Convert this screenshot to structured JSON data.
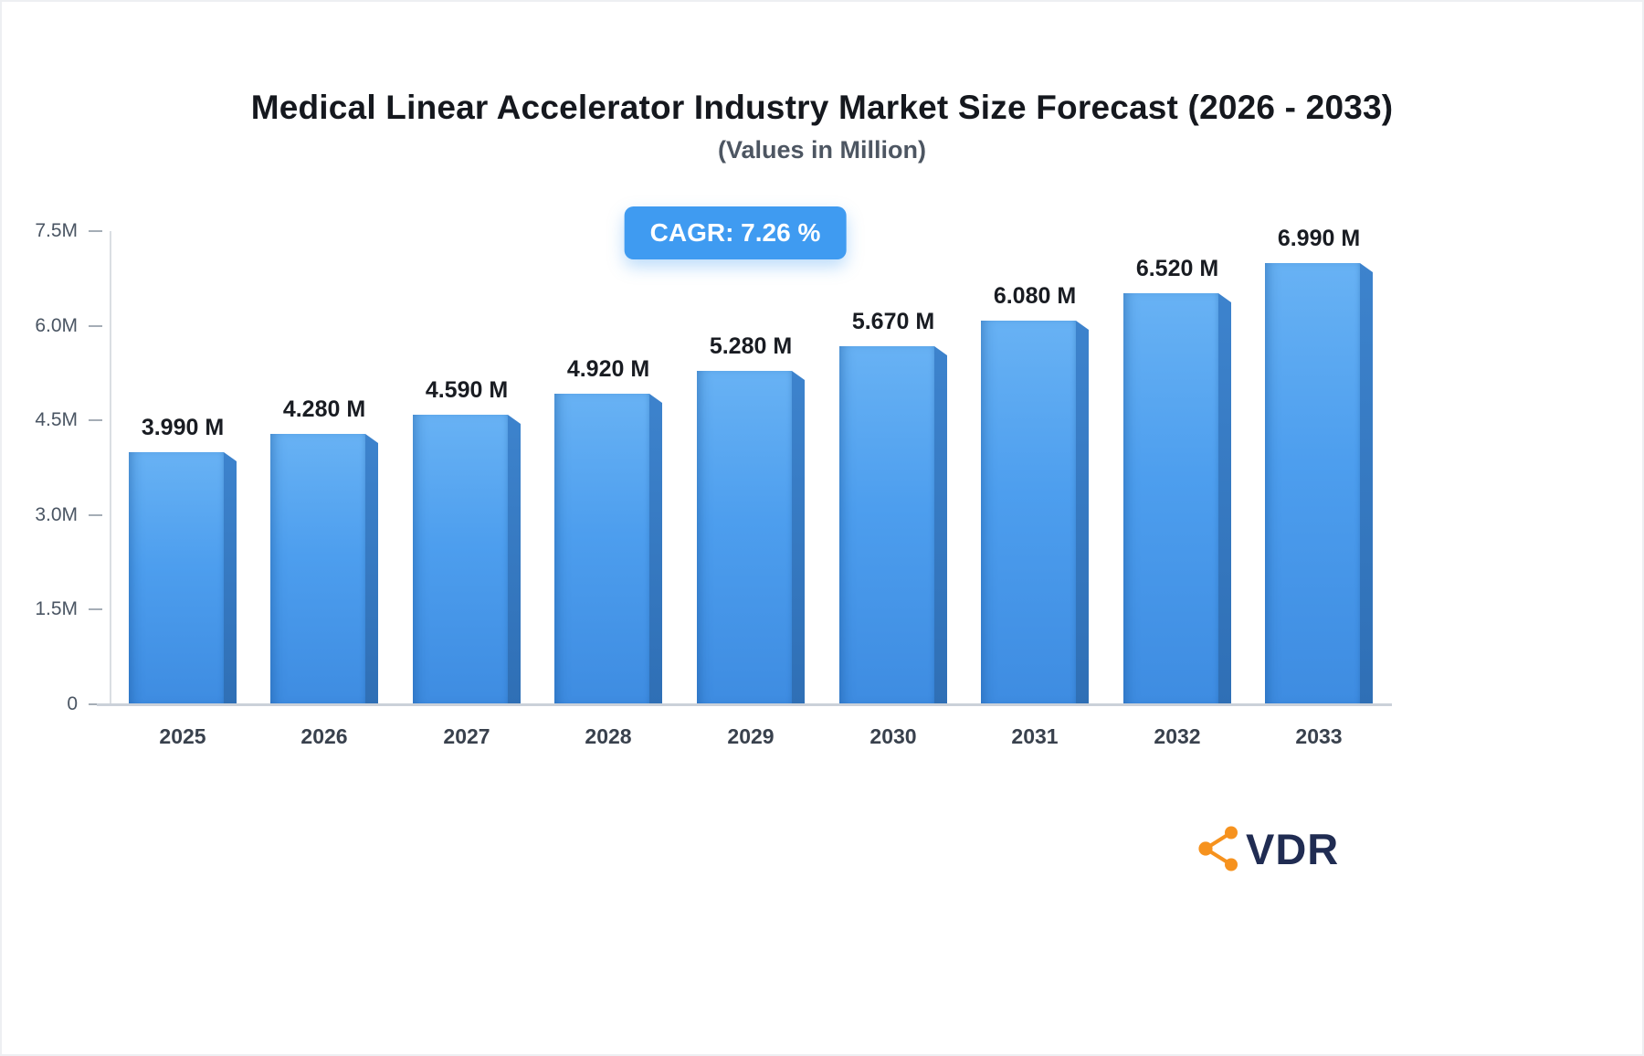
{
  "title": "Medical Linear Accelerator Industry Market Size Forecast (2026 - 2033)",
  "subtitle": "(Values in Million)",
  "badge": {
    "label": "CAGR: 7.26 %"
  },
  "logo": {
    "text": "VDR",
    "icon": "molecule-network-icon",
    "icon_color": "#F6921E",
    "text_color": "#202C52"
  },
  "colors": {
    "bar_top": "#68B2F4",
    "bar_bottom": "#3E8CE1",
    "bar_side_top": "#3D83CD",
    "bar_side_bottom": "#2F6FB5",
    "badge_bg": "#3F9BF1",
    "axis_line": "#DADEE3",
    "baseline": "#CBD1D9",
    "tick_text": "#4A5563",
    "value_label_text": "#191C22",
    "x_label_text": "#39414D"
  },
  "chart_data": {
    "type": "bar",
    "title": "Medical Linear Accelerator Industry Market Size Forecast (2026 - 2033)",
    "subtitle": "(Values in Million)",
    "unit": "Million",
    "categories": [
      "2025",
      "2026",
      "2027",
      "2028",
      "2029",
      "2030",
      "2031",
      "2032",
      "2033"
    ],
    "values": [
      3.99,
      4.28,
      4.59,
      4.92,
      5.28,
      5.67,
      6.08,
      6.52,
      6.99
    ],
    "value_labels": [
      "3.990 M",
      "4.280 M",
      "4.590 M",
      "4.920 M",
      "5.280 M",
      "5.670 M",
      "6.080 M",
      "6.520 M",
      "6.990 M"
    ],
    "xlabel": "",
    "ylabel": "",
    "ylim": [
      0,
      7.5
    ],
    "yticks": [
      {
        "value": 0,
        "label": "0"
      },
      {
        "value": 1.5,
        "label": "1.5M"
      },
      {
        "value": 3.0,
        "label": "3.0M"
      },
      {
        "value": 4.5,
        "label": "4.5M"
      },
      {
        "value": 6.0,
        "label": "6.0M"
      },
      {
        "value": 7.5,
        "label": "7.5M"
      }
    ],
    "grid": false,
    "legend": false,
    "annotations": [
      "CAGR: 7.26 %"
    ]
  }
}
